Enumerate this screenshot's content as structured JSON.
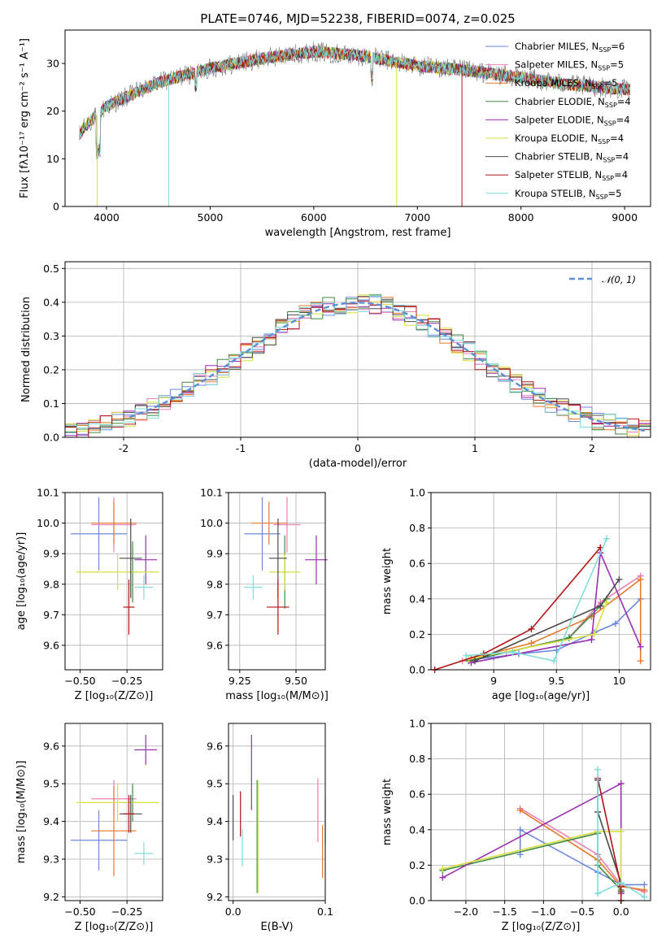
{
  "figure": {
    "title": "PLATE=0746, MJD=52238, FIBERID=0074, z=0.025"
  },
  "colors": {
    "Chabrier MILES": "#6b8ade",
    "Salpeter MILES": "#e97fb3",
    "Kroupa MILES": "#e8782a",
    "Chabrier ELODIE": "#3f8a3f",
    "Salpeter ELODIE": "#9a2fb0",
    "Kroupa ELODIE": "#d8df3e",
    "Chabrier STELIB": "#4a4a4a",
    "Salpeter STELIB": "#b01414",
    "Kroupa STELIB": "#7fdcdc"
  },
  "legend_top": [
    {
      "base": "Chabrier MILES, N",
      "sub": "SSP",
      "tail": "=6",
      "key": "Chabrier MILES"
    },
    {
      "base": "Salpeter MILES, N",
      "sub": "SSP",
      "tail": "=5",
      "key": "Salpeter MILES"
    },
    {
      "base": "Kroupa MILES, N",
      "sub": "SSP",
      "tail": "=5",
      "key": "Kroupa MILES"
    },
    {
      "base": "Chabrier ELODIE, N",
      "sub": "SSP",
      "tail": "=4",
      "key": "Chabrier ELODIE"
    },
    {
      "base": "Salpeter ELODIE, N",
      "sub": "SSP",
      "tail": "=4",
      "key": "Salpeter ELODIE"
    },
    {
      "base": "Kroupa ELODIE, N",
      "sub": "SSP",
      "tail": "=4",
      "key": "Kroupa ELODIE"
    },
    {
      "base": "Chabrier STELIB, N",
      "sub": "SSP",
      "tail": "=4",
      "key": "Chabrier STELIB"
    },
    {
      "base": "Salpeter STELIB, N",
      "sub": "SSP",
      "tail": "=4",
      "key": "Salpeter STELIB"
    },
    {
      "base": "Kroupa STELIB, N",
      "sub": "SSP",
      "tail": "=5",
      "key": "Kroupa STELIB"
    }
  ],
  "chart_data": [
    {
      "id": "spectrum",
      "type": "line",
      "xlabel": "wavelength [Angstrom, rest frame]",
      "ylabel": "Flux [fλ10⁻¹⁷ erg cm⁻² s⁻¹ A⁻¹]",
      "xlim": [
        3600,
        9250
      ],
      "ylim": [
        0,
        37
      ],
      "xticks": [
        4000,
        5000,
        6000,
        7000,
        8000,
        9000
      ],
      "yticks": [
        0,
        10,
        20,
        30
      ],
      "legend_position": "upper right",
      "continuum_points": [
        [
          3740,
          15
        ],
        [
          3800,
          17
        ],
        [
          3900,
          19
        ],
        [
          4000,
          21
        ],
        [
          4200,
          23
        ],
        [
          4500,
          26
        ],
        [
          5000,
          29
        ],
        [
          5500,
          31
        ],
        [
          6000,
          32.5
        ],
        [
          6500,
          31.5
        ],
        [
          7000,
          29.5
        ],
        [
          7500,
          28.5
        ],
        [
          8000,
          27
        ],
        [
          8500,
          25.5
        ],
        [
          9050,
          24.5
        ]
      ],
      "model_range": [
        3740,
        9050
      ]
    },
    {
      "id": "residuals",
      "type": "line",
      "xlabel": "(data-model)/error",
      "ylabel": "Normed distribution",
      "xlim": [
        -2.5,
        2.5
      ],
      "ylim": [
        0,
        0.52
      ],
      "xticks": [
        -2,
        -1,
        0,
        1,
        2
      ],
      "yticks": [
        0.0,
        0.1,
        0.2,
        0.3,
        0.4,
        0.5
      ],
      "grid": true,
      "legend": "𝒩(0, 1)",
      "legend_position": "upper right",
      "gaussian": {
        "mean": 0,
        "sigma": 1,
        "style": "dashed",
        "color": "#5a8fd6"
      }
    },
    {
      "id": "age-vs-Z",
      "type": "scatter",
      "xlabel": "Z [log₁₀(Z/Z⊙)]",
      "ylabel": "age  [log₁₀(age/yr)]",
      "xlim": [
        -0.58,
        -0.06
      ],
      "ylim": [
        9.52,
        10.1
      ],
      "xticks": [
        -0.5,
        -0.25
      ],
      "xticklabels": [
        "−0.50",
        "−0.25"
      ],
      "yticks": [
        9.6,
        9.7,
        9.8,
        9.9,
        10.0,
        10.1
      ],
      "grid": true,
      "points": [
        {
          "model": "Chabrier MILES",
          "x": -0.4,
          "xerr": 0.15,
          "y": 9.965,
          "yerr": 0.12
        },
        {
          "model": "Salpeter MILES",
          "x": -0.32,
          "xerr": 0.12,
          "y": 9.995,
          "yerr": 0.09
        },
        {
          "model": "Kroupa MILES",
          "x": -0.32,
          "xerr": 0.12,
          "y": 10.0,
          "yerr": 0.07
        },
        {
          "model": "Chabrier ELODIE",
          "x": -0.22,
          "xerr": 0.02,
          "y": 9.84,
          "yerr": 0.1
        },
        {
          "model": "Salpeter ELODIE",
          "x": -0.15,
          "xerr": 0.06,
          "y": 9.88,
          "yerr": 0.08
        },
        {
          "model": "Kroupa ELODIE",
          "x": -0.3,
          "xerr": 0.22,
          "y": 9.84,
          "yerr": 0.06
        },
        {
          "model": "Chabrier STELIB",
          "x": -0.23,
          "xerr": 0.06,
          "y": 9.885,
          "yerr": 0.13
        },
        {
          "model": "Salpeter STELIB",
          "x": -0.24,
          "xerr": 0.03,
          "y": 9.725,
          "yerr": 0.09
        },
        {
          "model": "Kroupa STELIB",
          "x": -0.16,
          "xerr": 0.05,
          "y": 9.79,
          "yerr": 0.04
        }
      ]
    },
    {
      "id": "age-vs-mass",
      "type": "scatter",
      "xlabel": "mass [log₁₀(M/M⊙)]",
      "ylabel": "",
      "xlim": [
        9.2,
        9.63
      ],
      "ylim": [
        9.52,
        10.1
      ],
      "xticks": [
        9.25,
        9.5
      ],
      "xticklabels": [
        "9.25",
        "9.50"
      ],
      "yticks": [
        9.6,
        9.7,
        9.8,
        9.9,
        10.0,
        10.1
      ],
      "grid": true,
      "points": [
        {
          "model": "Chabrier MILES",
          "x": 9.35,
          "xerr": 0.08,
          "y": 9.965,
          "yerr": 0.12
        },
        {
          "model": "Salpeter MILES",
          "x": 9.46,
          "xerr": 0.06,
          "y": 9.995,
          "yerr": 0.09
        },
        {
          "model": "Kroupa MILES",
          "x": 9.38,
          "xerr": 0.08,
          "y": 10.0,
          "yerr": 0.07
        },
        {
          "model": "Chabrier ELODIE",
          "x": 9.45,
          "xerr": 0.01,
          "y": 9.84,
          "yerr": 0.12
        },
        {
          "model": "Salpeter ELODIE",
          "x": 9.59,
          "xerr": 0.05,
          "y": 9.88,
          "yerr": 0.08
        },
        {
          "model": "Kroupa ELODIE",
          "x": 9.45,
          "xerr": 0.07,
          "y": 9.84,
          "yerr": 0.06
        },
        {
          "model": "Chabrier STELIB",
          "x": 9.42,
          "xerr": 0.04,
          "y": 9.885,
          "yerr": 0.13
        },
        {
          "model": "Salpeter STELIB",
          "x": 9.42,
          "xerr": 0.05,
          "y": 9.725,
          "yerr": 0.09
        },
        {
          "model": "Kroupa STELIB",
          "x": 9.31,
          "xerr": 0.04,
          "y": 9.79,
          "yerr": 0.04
        }
      ]
    },
    {
      "id": "weight-vs-age",
      "type": "line",
      "xlabel": "age  [log₁₀(age/yr)]",
      "ylabel": "mass weight",
      "xlim": [
        8.5,
        10.25
      ],
      "ylim": [
        0,
        1.0
      ],
      "xticks": [
        9.0,
        9.5,
        10.0
      ],
      "yticks": [
        0.0,
        0.2,
        0.4,
        0.6,
        0.8,
        1.0
      ],
      "grid": true,
      "series": [
        {
          "model": "Chabrier MILES",
          "x": [
            8.82,
            9.0,
            9.2,
            9.5,
            9.8,
            9.97,
            10.17
          ],
          "y": [
            0.06,
            0.07,
            0.09,
            0.11,
            0.21,
            0.26,
            0.4
          ]
        },
        {
          "model": "Salpeter MILES",
          "x": [
            8.75,
            9.1,
            9.6,
            9.85,
            10.17
          ],
          "y": [
            0.05,
            0.1,
            0.18,
            0.38,
            0.53
          ]
        },
        {
          "model": "Kroupa MILES",
          "x": [
            8.8,
            9.3,
            9.78,
            10.17,
            10.17
          ],
          "y": [
            0.06,
            0.15,
            0.3,
            0.51,
            0.05
          ]
        },
        {
          "model": "Chabrier ELODIE",
          "x": [
            8.8,
            9.6,
            9.85,
            9.9
          ],
          "y": [
            0.05,
            0.18,
            0.36,
            0.4
          ]
        },
        {
          "model": "Salpeter ELODIE",
          "x": [
            8.82,
            9.78,
            9.85,
            10.17
          ],
          "y": [
            0.04,
            0.17,
            0.66,
            0.13
          ]
        },
        {
          "model": "Kroupa ELODIE",
          "x": [
            8.8,
            9.8,
            9.9
          ],
          "y": [
            0.06,
            0.2,
            0.38
          ]
        },
        {
          "model": "Chabrier STELIB",
          "x": [
            8.85,
            9.85,
            10.0
          ],
          "y": [
            0.05,
            0.36,
            0.51
          ]
        },
        {
          "model": "Salpeter STELIB",
          "x": [
            8.53,
            8.92,
            9.3,
            9.85
          ],
          "y": [
            0.0,
            0.09,
            0.23,
            0.69
          ]
        },
        {
          "model": "Kroupa STELIB",
          "x": [
            8.78,
            9.15,
            9.48,
            9.9
          ],
          "y": [
            0.08,
            0.1,
            0.05,
            0.74
          ]
        }
      ]
    },
    {
      "id": "mass-vs-Z",
      "type": "scatter",
      "xlabel": "Z [log₁₀(Z/Z⊙)]",
      "ylabel": "mass [log₁₀(M/M⊙)]",
      "xlim": [
        -0.58,
        -0.06
      ],
      "ylim": [
        9.19,
        9.66
      ],
      "xticks": [
        -0.5,
        -0.25
      ],
      "xticklabels": [
        "−0.50",
        "−0.25"
      ],
      "yticks": [
        9.2,
        9.3,
        9.4,
        9.5,
        9.6
      ],
      "grid": true,
      "points": [
        {
          "model": "Chabrier MILES",
          "x": -0.4,
          "xerr": 0.15,
          "y": 9.35,
          "yerr": 0.08
        },
        {
          "model": "Salpeter MILES",
          "x": -0.32,
          "xerr": 0.12,
          "y": 9.46,
          "yerr": 0.05
        },
        {
          "model": "Kroupa MILES",
          "x": -0.32,
          "xerr": 0.12,
          "y": 9.375,
          "yerr": 0.12
        },
        {
          "model": "Chabrier ELODIE",
          "x": -0.22,
          "xerr": 0.02,
          "y": 9.45,
          "yerr": 0.05
        },
        {
          "model": "Salpeter ELODIE",
          "x": -0.15,
          "xerr": 0.06,
          "y": 9.59,
          "yerr": 0.04
        },
        {
          "model": "Kroupa ELODIE",
          "x": -0.3,
          "xerr": 0.22,
          "y": 9.45,
          "yerr": 0.05
        },
        {
          "model": "Chabrier STELIB",
          "x": -0.23,
          "xerr": 0.06,
          "y": 9.42,
          "yerr": 0.05
        },
        {
          "model": "Salpeter STELIB",
          "x": -0.24,
          "xerr": 0.03,
          "y": 9.42,
          "yerr": 0.05
        },
        {
          "model": "Kroupa STELIB",
          "x": -0.16,
          "xerr": 0.05,
          "y": 9.315,
          "yerr": 0.03
        }
      ]
    },
    {
      "id": "mass-vs-EBV",
      "type": "scatter",
      "xlabel": "E(B-V)",
      "ylabel": "",
      "xlim": [
        -0.005,
        0.1
      ],
      "ylim": [
        9.19,
        9.66
      ],
      "xticks": [
        0.0,
        0.1
      ],
      "xticklabels": [
        "0.0",
        "0.1"
      ],
      "yticks": [
        9.2,
        9.3,
        9.4,
        9.5,
        9.6
      ],
      "grid": true,
      "points": [
        {
          "model": "Chabrier MILES",
          "x": 0.1,
          "xerr": 0,
          "y": 9.4,
          "yerr": 0.06
        },
        {
          "model": "Salpeter MILES",
          "x": 0.092,
          "xerr": 0,
          "y": 9.43,
          "yerr": 0.085
        },
        {
          "model": "Kroupa MILES",
          "x": 0.097,
          "xerr": 0,
          "y": 9.32,
          "yerr": 0.07
        },
        {
          "model": "Chabrier ELODIE",
          "x": 0.026,
          "xerr": 0,
          "y": 9.36,
          "yerr": 0.15
        },
        {
          "model": "Salpeter ELODIE",
          "x": 0.02,
          "xerr": 0,
          "y": 9.53,
          "yerr": 0.1
        },
        {
          "model": "Kroupa ELODIE",
          "x": 0.027,
          "xerr": 0,
          "y": 9.36,
          "yerr": 0.15
        },
        {
          "model": "Chabrier STELIB",
          "x": 0.0,
          "xerr": 0,
          "y": 9.41,
          "yerr": 0.06
        },
        {
          "model": "Salpeter STELIB",
          "x": 0.008,
          "xerr": 0,
          "y": 9.42,
          "yerr": 0.06
        },
        {
          "model": "Kroupa STELIB",
          "x": 0.01,
          "xerr": 0,
          "y": 9.33,
          "yerr": 0.05
        }
      ]
    },
    {
      "id": "weight-vs-Z",
      "type": "line",
      "xlabel": "Z [log₁₀(Z/Z⊙)]",
      "ylabel": "mass weight",
      "xlim": [
        -2.45,
        0.38
      ],
      "ylim": [
        0,
        1.0
      ],
      "xticks": [
        -2.0,
        -1.5,
        -1.0,
        -0.5,
        0.0
      ],
      "xticklabels": [
        "−2.0",
        "−1.5",
        "−1.0",
        "−0.5",
        "0.0"
      ],
      "yticks": [
        0.0,
        0.2,
        0.4,
        0.6,
        0.8,
        1.0
      ],
      "grid": true,
      "series": [
        {
          "model": "Chabrier MILES",
          "x": [
            -1.3,
            -1.3,
            -0.3,
            0.0,
            0.3
          ],
          "y": [
            0.26,
            0.4,
            0.16,
            0.09,
            0.09
          ]
        },
        {
          "model": "Salpeter MILES",
          "x": [
            -1.3,
            -0.3,
            0.0,
            0.3
          ],
          "y": [
            0.52,
            0.26,
            0.09,
            0.05
          ]
        },
        {
          "model": "Kroupa MILES",
          "x": [
            -1.3,
            -0.3,
            0.0,
            0.3
          ],
          "y": [
            0.51,
            0.23,
            0.08,
            0.06
          ]
        },
        {
          "model": "Chabrier ELODIE",
          "x": [
            -2.3,
            -0.3,
            -0.3,
            0.0
          ],
          "y": [
            0.17,
            0.38,
            0.2,
            0.06
          ]
        },
        {
          "model": "Salpeter ELODIE",
          "x": [
            -2.3,
            0.0,
            0.0
          ],
          "y": [
            0.13,
            0.66,
            0.04
          ]
        },
        {
          "model": "Kroupa ELODIE",
          "x": [
            -2.3,
            -0.3,
            0.0,
            0.0
          ],
          "y": [
            0.18,
            0.39,
            0.39,
            0.05
          ]
        },
        {
          "model": "Chabrier STELIB",
          "x": [
            -0.3,
            -0.3,
            0.0,
            0.0
          ],
          "y": [
            0.68,
            0.5,
            0.1,
            0.05
          ]
        },
        {
          "model": "Salpeter STELIB",
          "x": [
            -0.3,
            0.0,
            0.0
          ],
          "y": [
            0.69,
            0.08,
            0.0
          ]
        },
        {
          "model": "Kroupa STELIB",
          "x": [
            -0.3,
            -0.3,
            0.0,
            0.3
          ],
          "y": [
            0.74,
            0.04,
            0.1,
            0.02
          ]
        }
      ]
    }
  ]
}
